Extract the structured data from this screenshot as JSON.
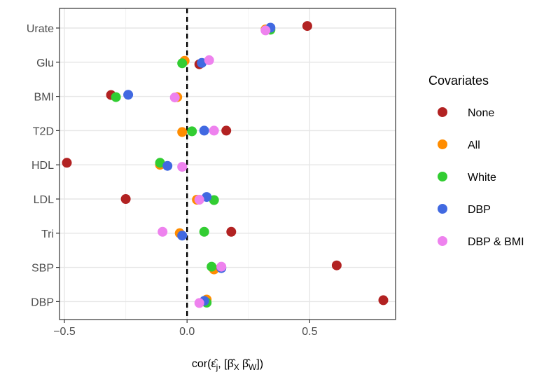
{
  "chart_data": {
    "type": "scatter",
    "title": "",
    "xlabel": "cor(ε̂j, [β̂X β̂W])",
    "xlabel_parts": {
      "prefix": "cor(",
      "eps": "ε̂",
      "eps_sub": "j",
      "sep": ", [",
      "b1": "β̂",
      "b1_sub": "X",
      "b2": "β̂",
      "b2_sub": "W",
      "suffix": "])"
    },
    "ylabel": "",
    "xlim": [
      -0.52,
      0.85
    ],
    "x_ticks": [
      -0.5,
      0.0,
      0.5
    ],
    "x_tick_labels": [
      "−0.5",
      "0.0",
      "0.5"
    ],
    "reference_line": {
      "x": 0,
      "style": "dashed"
    },
    "grid": true,
    "legend_position": "right",
    "legend_title": "Covariates",
    "categories": [
      "Urate",
      "Glu",
      "BMI",
      "T2D",
      "HDL",
      "LDL",
      "Tri",
      "SBP",
      "DBP"
    ],
    "series": [
      {
        "name": "None",
        "color": "#B22222",
        "values": [
          0.49,
          0.05,
          -0.31,
          0.16,
          -0.49,
          -0.25,
          0.18,
          0.61,
          0.8
        ],
        "offsets": [
          -0.12,
          0.12,
          -0.08,
          0.0,
          -0.12,
          0.0,
          -0.08,
          -0.12,
          -0.08
        ]
      },
      {
        "name": "All",
        "color": "#FF8C00",
        "values": [
          0.32,
          -0.01,
          -0.04,
          -0.02,
          -0.11,
          0.04,
          -0.03,
          0.11,
          0.08
        ],
        "offsets": [
          0.08,
          -0.08,
          0.04,
          0.08,
          0.0,
          0.04,
          0.0,
          0.12,
          -0.12
        ]
      },
      {
        "name": "White",
        "color": "#32CD32",
        "values": [
          0.34,
          -0.02,
          -0.29,
          0.02,
          -0.11,
          0.11,
          0.07,
          0.1,
          0.08
        ],
        "offsets": [
          0.1,
          0.06,
          0.04,
          0.04,
          -0.12,
          0.06,
          -0.08,
          -0.04,
          0.06
        ]
      },
      {
        "name": "DBP",
        "color": "#4169E1",
        "values": [
          0.34,
          0.06,
          -0.24,
          0.07,
          -0.08,
          0.08,
          -0.02,
          0.14,
          0.07
        ],
        "offsets": [
          -0.02,
          0.04,
          -0.1,
          0.0,
          0.06,
          -0.12,
          0.14,
          0.04,
          -0.04
        ]
      },
      {
        "name": "DBP & BMI",
        "color": "#EE82EE",
        "values": [
          0.32,
          0.09,
          -0.05,
          0.11,
          -0.02,
          0.05,
          -0.1,
          0.14,
          0.05
        ],
        "offsets": [
          0.14,
          -0.12,
          0.06,
          0.0,
          0.12,
          0.04,
          -0.08,
          -0.04,
          0.08
        ]
      }
    ]
  }
}
